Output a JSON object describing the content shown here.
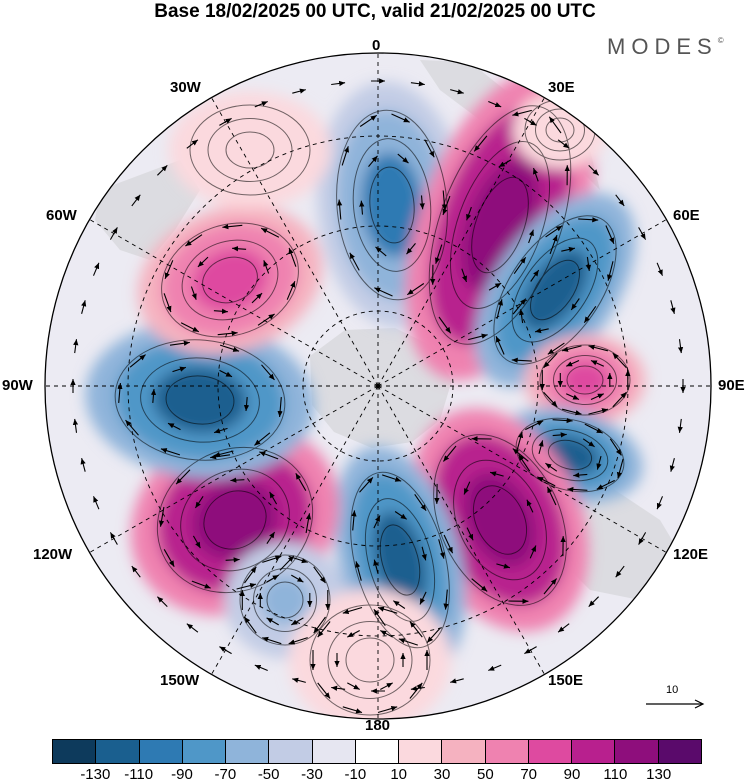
{
  "title": "Base 18/02/2025 00 UTC, valid 21/02/2025 00 UTC",
  "brand": "MODES",
  "brand_mark": "©",
  "longitude_labels": {
    "lon_0": "0",
    "lon_30e": "30E",
    "lon_60e": "60E",
    "lon_90e": "90E",
    "lon_120e": "120E",
    "lon_150e": "150E",
    "lon_180": "180",
    "lon_150w": "150W",
    "lon_120w": "120W",
    "lon_90w": "90W",
    "lon_60w": "60W",
    "lon_30w": "30W"
  },
  "reference_vector_label": "10",
  "colorbar": {
    "colors": [
      "#0d3a5c",
      "#1a5f8f",
      "#2e7ab3",
      "#4f97c8",
      "#8fb4da",
      "#c2cce5",
      "#e6e6f1",
      "#ffffff",
      "#fbd9de",
      "#f5b2c0",
      "#ef82b0",
      "#de4aa0",
      "#b8208e",
      "#8e0e7c",
      "#5a0a6b"
    ],
    "tick_labels": [
      "-130",
      "-110",
      "-90",
      "-70",
      "-50",
      "-30",
      "-10",
      "10",
      "30",
      "50",
      "70",
      "90",
      "110",
      "130"
    ]
  },
  "anomaly_centers": [
    {
      "id": "neg-0",
      "lon": "0",
      "sign": "negative"
    },
    {
      "id": "pos-30e",
      "lon": "30E",
      "sign": "positive"
    },
    {
      "id": "neg-55e",
      "lon": "55E",
      "sign": "negative"
    },
    {
      "id": "pos-90e",
      "lon": "90E",
      "sign": "positive"
    },
    {
      "id": "neg-110e",
      "lon": "110E",
      "sign": "negative"
    },
    {
      "id": "pos-140e",
      "lon": "140E",
      "sign": "positive"
    },
    {
      "id": "neg-165e",
      "lon": "165E",
      "sign": "negative"
    },
    {
      "id": "pos-130w",
      "lon": "130W",
      "sign": "positive"
    },
    {
      "id": "neg-90w",
      "lon": "90W",
      "sign": "negative"
    },
    {
      "id": "pos-60w",
      "lon": "60W",
      "sign": "positive"
    },
    {
      "id": "neg-150w",
      "lon": "150W",
      "sign": "negative"
    },
    {
      "id": "pos-175w",
      "lon": "175W",
      "sign": "positive"
    }
  ]
}
